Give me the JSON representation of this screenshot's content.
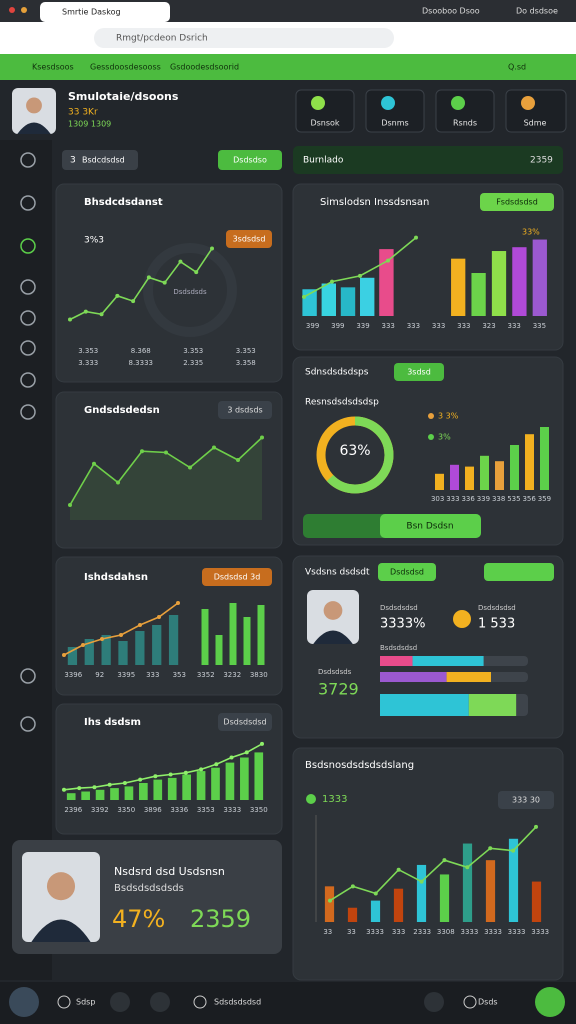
{
  "browser": {
    "tab_title": "Smrtie Daskog",
    "tab_right": "Dsooboo Dsoo",
    "user": "Do dsdsoe",
    "address": "Rmgt/pcdeon Dsrich"
  },
  "nav": {
    "items": [
      "Ksesdsoos",
      "Gessdoosdesooss",
      "Gsdoodesdsoorid"
    ],
    "search": "Q.sd"
  },
  "profile": {
    "name": "Smulotaie/dsoons",
    "stat": "33 3Kr",
    "sub": "1309  1309"
  },
  "quick": [
    "Dsnsok",
    "Dsnms",
    "Rsnds",
    "Sdme"
  ],
  "filters": {
    "count": "3",
    "select": "Bsdcdsdsd",
    "button": "Dsdsdso",
    "period": "Burnlado",
    "period_value": "2359"
  },
  "left_panels": {
    "trend": {
      "title": "Bhsdcdsdanst",
      "value": "3%3",
      "badge": "3sdsdsd",
      "center": "Dsdsdsds",
      "ylim": [
        0,
        70
      ],
      "color": "#7ed957",
      "values": [
        8,
        14,
        12,
        26,
        22,
        40,
        36,
        52,
        44,
        62
      ],
      "legend": [
        "3.353",
        "8.368",
        "3.353",
        "3.353"
      ],
      "legend2": [
        "3.333",
        "8.3333",
        "2.335",
        "3.358"
      ]
    },
    "growth": {
      "title": "Gndsdsdedsn",
      "badge": "3 dsdsds",
      "ylim": [
        0,
        80
      ],
      "color": "#6fcf4a",
      "values": [
        12,
        45,
        30,
        55,
        54,
        42,
        58,
        48,
        66
      ]
    },
    "mix": {
      "title": "Ishdsdahsn",
      "badge": "Dsdsdsd 3d",
      "ylim": [
        0,
        70
      ],
      "bars": [
        18,
        26,
        30,
        24,
        34,
        40,
        50
      ],
      "line": [
        10,
        20,
        26,
        30,
        40,
        48,
        62
      ],
      "bars2": [
        56,
        30,
        62,
        48,
        60
      ],
      "bar_color": "#2e7d7a",
      "line_color": "#e8a03c",
      "bar2_color": "#5ccf4a",
      "labels": [
        "3396",
        "92",
        "3395",
        "333",
        "353",
        "3352",
        "3232",
        "3830"
      ]
    },
    "rise": {
      "title": "Ihs dsdsm",
      "badge": "Dsdsdsdsd",
      "ylim": [
        0,
        80
      ],
      "bars": [
        8,
        10,
        12,
        14,
        16,
        20,
        24,
        26,
        30,
        34,
        38,
        44,
        50,
        56
      ],
      "line": [
        12,
        14,
        15,
        18,
        20,
        24,
        28,
        30,
        32,
        36,
        42,
        50,
        56,
        66
      ],
      "color": "#5ccf4a",
      "line_color": "#8ff06a",
      "labels": [
        "2396",
        "3392",
        "3350",
        "3896",
        "3336",
        "3353",
        "3333",
        "3350"
      ]
    },
    "person": {
      "name": "Nsdsrd dsd Usdsnsn",
      "role": "Bsdsdsdsdsds",
      "percent": "47%",
      "total": "2359"
    }
  },
  "right_panels": {
    "compare": {
      "title": "Simslodsn Inssdsnsan",
      "button": "Fsdsdsdsd",
      "note": "33%",
      "ylim": [
        0,
        90
      ],
      "bars": [
        28,
        34,
        30,
        40,
        70
      ],
      "bars2": [
        60,
        45,
        68,
        72,
        80
      ],
      "colors": [
        "#2ec4d6",
        "#38d4e0",
        "#27b8c8",
        "#3bd0e3",
        "#e84c8b"
      ],
      "colors2": [
        "#f2b120",
        "#6cd44a",
        "#8fe04a",
        "#b04ad8",
        "#9b59d0"
      ],
      "line": [
        20,
        36,
        42,
        58,
        82
      ],
      "line_color": "#7ed957",
      "labels": [
        "399",
        "399",
        "339",
        "333",
        "333",
        "333",
        "333",
        "323",
        "333",
        "335"
      ]
    },
    "ratio": {
      "title": "Sdnsdsdsdsps",
      "badge": "3sdsd",
      "subtitle": "Resnsdsdsdsdsp",
      "donut": 63,
      "donut_label": "63%",
      "donut_color": "#7ed957",
      "rest_color": "#f2b120",
      "legend": [
        "3 3%",
        "3%"
      ],
      "bars": [
        18,
        28,
        26,
        38,
        32,
        50,
        62,
        70
      ],
      "colors": [
        "#f2b120",
        "#b04ad8",
        "#f2b120",
        "#6cd44a",
        "#e8a03c",
        "#5ccf4a",
        "#f2b120",
        "#5ccf4a"
      ],
      "ylim": [
        0,
        80
      ],
      "labels": [
        "303",
        "333",
        "336",
        "339",
        "338",
        "535",
        "356",
        "359"
      ],
      "button": "Bsn Dsdsn"
    },
    "people": {
      "title": "Vsdsns dsdsdt",
      "badge": "Dsdsdsd",
      "stat1_label": "Dsdsdsdsd",
      "stat1": "3333%",
      "stat2_label": "Dsdsdsdsd",
      "stat2": "1 533",
      "stat3_label": "Dsdsdsds",
      "stat3": "3729",
      "bar_label": "Bsdsdsdsd",
      "xlim": [
        0,
        100
      ],
      "progress": [
        {
          "values": [
            22,
            48
          ],
          "colors": [
            "#e84c8b",
            "#2ec4d6"
          ]
        },
        {
          "values": [
            45,
            30
          ],
          "colors": [
            "#9b59d0",
            "#f2b120"
          ]
        },
        {
          "values": [
            60,
            32
          ],
          "colors": [
            "#2ec4d6",
            "#7ed957"
          ]
        }
      ]
    },
    "overview": {
      "title": "Bsdsnosdsdsdsdslang",
      "value": "1333",
      "badge": "333 30",
      "ylim": [
        0,
        90
      ],
      "bars": [
        30,
        12,
        18,
        28,
        48,
        40,
        66,
        52,
        70,
        34
      ],
      "colors": [
        "#d2691e",
        "#c1440e",
        "#2ec4d6",
        "#c1440e",
        "#2ec4d6",
        "#5ccf4a",
        "#2e9e8a",
        "#d2691e",
        "#2ec4d6",
        "#c1440e"
      ],
      "line": [
        18,
        30,
        24,
        44,
        34,
        52,
        46,
        62,
        60,
        80
      ],
      "line_color": "#7ed957",
      "labels": [
        "33",
        "33",
        "3333",
        "333",
        "2333",
        "3308",
        "3333",
        "3333",
        "3333",
        "3333"
      ]
    }
  },
  "bottom": {
    "items": [
      "Sdsp",
      "Sdsdsdsdsd",
      "Dsds"
    ]
  }
}
